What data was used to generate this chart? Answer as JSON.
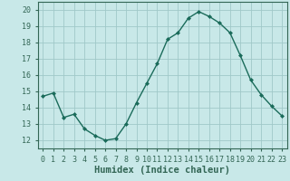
{
  "x": [
    0,
    1,
    2,
    3,
    4,
    5,
    6,
    7,
    8,
    9,
    10,
    11,
    12,
    13,
    14,
    15,
    16,
    17,
    18,
    19,
    20,
    21,
    22,
    23
  ],
  "y": [
    14.7,
    14.9,
    13.4,
    13.6,
    12.7,
    12.3,
    12.0,
    12.1,
    13.0,
    14.3,
    15.5,
    16.7,
    18.2,
    18.6,
    19.5,
    19.9,
    19.6,
    19.2,
    18.6,
    17.2,
    15.7,
    14.8,
    14.1,
    13.5
  ],
  "line_color": "#1a6b5a",
  "marker": "D",
  "marker_size": 2.0,
  "linewidth": 1.0,
  "bg_color": "#c8e8e8",
  "grid_color": "#a0c8c8",
  "xlabel": "Humidex (Indice chaleur)",
  "xlim": [
    -0.5,
    23.5
  ],
  "ylim": [
    11.5,
    20.5
  ],
  "yticks": [
    12,
    13,
    14,
    15,
    16,
    17,
    18,
    19,
    20
  ],
  "xticks": [
    0,
    1,
    2,
    3,
    4,
    5,
    6,
    7,
    8,
    9,
    10,
    11,
    12,
    13,
    14,
    15,
    16,
    17,
    18,
    19,
    20,
    21,
    22,
    23
  ],
  "xtick_labels": [
    "0",
    "1",
    "2",
    "3",
    "4",
    "5",
    "6",
    "7",
    "8",
    "9",
    "10",
    "11",
    "12",
    "13",
    "14",
    "15",
    "16",
    "17",
    "18",
    "19",
    "20",
    "21",
    "22",
    "23"
  ],
  "xlabel_fontsize": 7.5,
  "tick_fontsize": 6.0,
  "spine_color": "#336655"
}
